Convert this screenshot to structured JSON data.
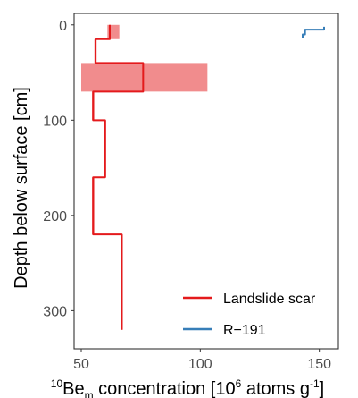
{
  "chart_data": {
    "type": "line",
    "xlabel_parts": {
      "sup_pre": "10",
      "base": "Be",
      "sub": "m",
      "mid": " concentration [10",
      "sup_mid": "6",
      "tail": " atoms g",
      "sup_tail": "-1",
      "end": "]"
    },
    "ylabel": "Depth below surface [cm]",
    "xlim": [
      47,
      158
    ],
    "ylim": [
      340,
      -12
    ],
    "y_reversed": true,
    "x_ticks": [
      50,
      100,
      150
    ],
    "y_ticks": [
      0,
      100,
      200,
      300
    ],
    "grid": false,
    "legend_position": "bottom-right",
    "series": [
      {
        "name": "Landslide scar",
        "color": "#e41a1c",
        "steps": [
          {
            "from": 0,
            "to": 15,
            "value": 62
          },
          {
            "from": 15,
            "to": 40,
            "value": 56
          },
          {
            "from": 40,
            "to": 70,
            "value": 76
          },
          {
            "from": 70,
            "to": 100,
            "value": 55
          },
          {
            "from": 100,
            "to": 160,
            "value": 60
          },
          {
            "from": 160,
            "to": 220,
            "value": 55
          },
          {
            "from": 220,
            "to": 320,
            "value": 67
          }
        ],
        "uncertainty": [
          {
            "from": 0,
            "to": 15,
            "low": 61,
            "high": 66
          },
          {
            "from": 15,
            "to": 40,
            "low": 55.5,
            "high": 56.5
          },
          {
            "from": 40,
            "to": 70,
            "low": 50,
            "high": 103
          },
          {
            "from": 70,
            "to": 100,
            "low": 54.5,
            "high": 55.5
          },
          {
            "from": 100,
            "to": 160,
            "low": 59.5,
            "high": 60.5
          },
          {
            "from": 160,
            "to": 220,
            "low": 54.5,
            "high": 55.5
          },
          {
            "from": 220,
            "to": 320,
            "low": 66.5,
            "high": 67.5
          }
        ]
      },
      {
        "name": "R−191",
        "color": "#377eb8",
        "steps": [
          {
            "from": 2,
            "to": 5,
            "value": 152
          },
          {
            "from": 5,
            "to": 10,
            "value": 144
          },
          {
            "from": 10,
            "to": 14,
            "value": 143
          }
        ],
        "uncertainty": []
      }
    ]
  }
}
